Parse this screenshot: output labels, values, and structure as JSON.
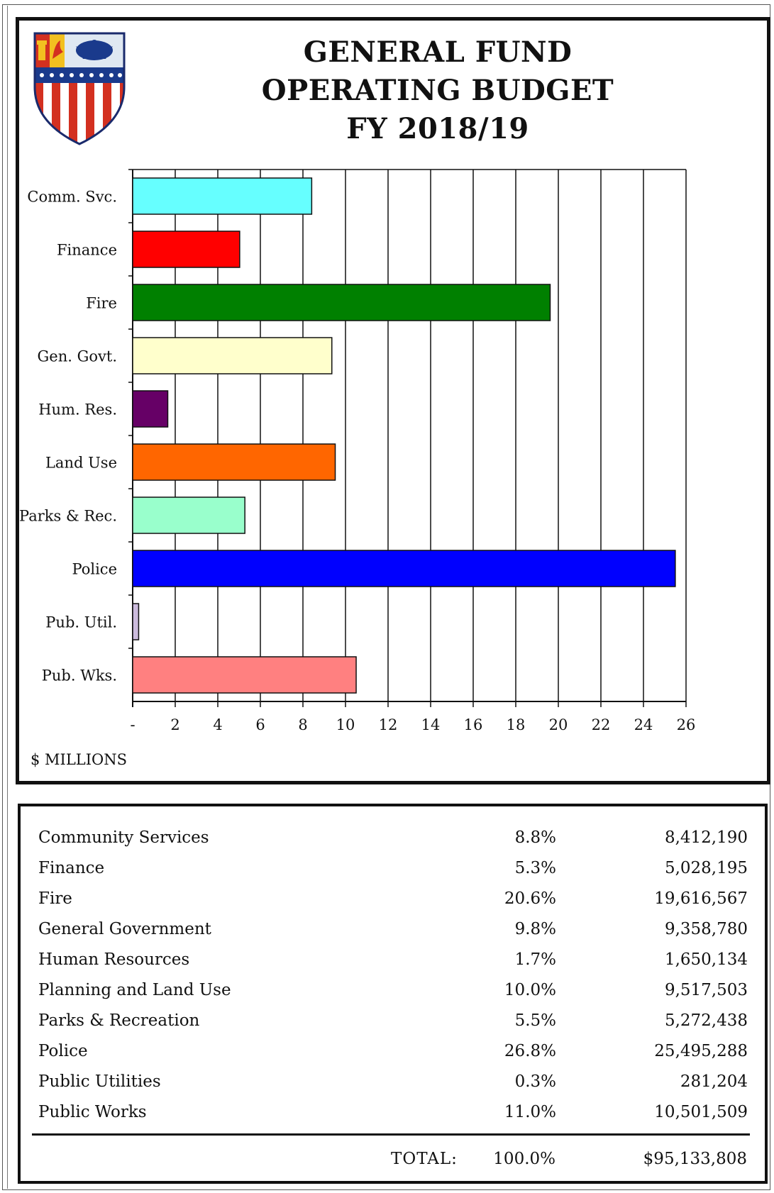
{
  "header": {
    "title_lines": [
      "GENERAL FUND",
      "OPERATING BUDGET",
      "FY 2018/19"
    ]
  },
  "chart_data": {
    "type": "bar",
    "orientation": "horizontal",
    "categories": [
      "Comm. Svc.",
      "Finance",
      "Fire",
      "Gen. Govt.",
      "Hum. Res.",
      "Land Use",
      "Parks & Rec.",
      "Police",
      "Pub. Util.",
      "Pub. Wks."
    ],
    "values": [
      8.41219,
      5.028195,
      19.616567,
      9.35878,
      1.650134,
      9.517503,
      5.272438,
      25.495288,
      0.281204,
      10.501509
    ],
    "colors": [
      "#66ffff",
      "#ff0000",
      "#008000",
      "#ffffcc",
      "#660066",
      "#ff6600",
      "#99ffcc",
      "#0000ff",
      "#ccbbdd",
      "#ff8080"
    ],
    "xlim": [
      0,
      26
    ],
    "xticks": [
      "-",
      "2",
      "4",
      "6",
      "8",
      "10",
      "12",
      "14",
      "16",
      "18",
      "20",
      "22",
      "24",
      "26"
    ],
    "xlabel": "$ MILLIONS",
    "grid": "vertical"
  },
  "table": {
    "rows": [
      {
        "name": "Community Services",
        "pct": "8.8%",
        "amount": "8,412,190"
      },
      {
        "name": "Finance",
        "pct": "5.3%",
        "amount": "5,028,195"
      },
      {
        "name": "Fire",
        "pct": "20.6%",
        "amount": "19,616,567"
      },
      {
        "name": "General Government",
        "pct": "9.8%",
        "amount": "9,358,780"
      },
      {
        "name": "Human Resources",
        "pct": "1.7%",
        "amount": "1,650,134"
      },
      {
        "name": "Planning and Land Use",
        "pct": "10.0%",
        "amount": "9,517,503"
      },
      {
        "name": "Parks & Recreation",
        "pct": "5.5%",
        "amount": "5,272,438"
      },
      {
        "name": "Police",
        "pct": "26.8%",
        "amount": "25,495,288"
      },
      {
        "name": "Public Utilities",
        "pct": "0.3%",
        "amount": "281,204"
      },
      {
        "name": "Public Works",
        "pct": "11.0%",
        "amount": "10,501,509"
      }
    ],
    "total_label": "TOTAL:",
    "total_pct": "100.0%",
    "total_amount": "$95,133,808"
  },
  "seal": {
    "icon": "city-seal-icon"
  }
}
